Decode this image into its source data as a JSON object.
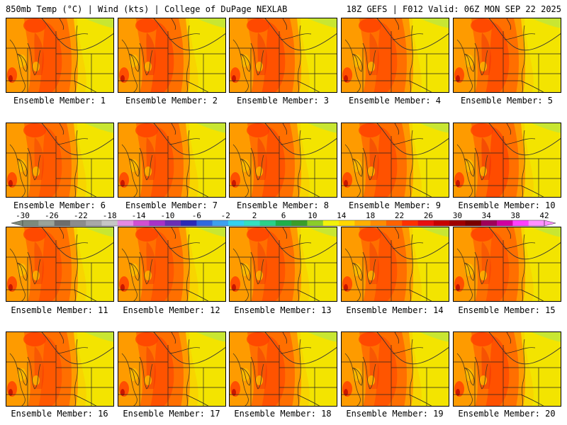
{
  "header": {
    "left": "850mb Temp (°C) | Wind (kts) | College of DuPage NEXLAB",
    "right": "18Z GEFS | F012 Valid: 06Z MON SEP 22 2025"
  },
  "member_label_prefix": "Ensemble Member: ",
  "members": [
    {
      "id": 1,
      "intensity": 0.55
    },
    {
      "id": 2,
      "intensity": 0.62
    },
    {
      "id": 3,
      "intensity": 0.58
    },
    {
      "id": 4,
      "intensity": 0.5
    },
    {
      "id": 5,
      "intensity": 0.6
    },
    {
      "id": 6,
      "intensity": 0.45
    },
    {
      "id": 7,
      "intensity": 0.52
    },
    {
      "id": 8,
      "intensity": 0.56
    },
    {
      "id": 9,
      "intensity": 0.57
    },
    {
      "id": 10,
      "intensity": 0.68
    },
    {
      "id": 11,
      "intensity": 0.47
    },
    {
      "id": 12,
      "intensity": 0.48
    },
    {
      "id": 13,
      "intensity": 0.5
    },
    {
      "id": 14,
      "intensity": 0.53
    },
    {
      "id": 15,
      "intensity": 0.44
    },
    {
      "id": 16,
      "intensity": 0.46
    },
    {
      "id": 17,
      "intensity": 0.54
    },
    {
      "id": 18,
      "intensity": 0.55
    },
    {
      "id": 19,
      "intensity": 0.49
    },
    {
      "id": 20,
      "intensity": 0.58
    }
  ],
  "colorbar": {
    "ticks": [
      "-30",
      "-26",
      "-22",
      "-18",
      "-14",
      "-10",
      "-6",
      "-2",
      "2",
      "6",
      "10",
      "14",
      "18",
      "22",
      "26",
      "30",
      "34",
      "38",
      "42"
    ],
    "colors": [
      "#7d8a7d",
      "#9aa39a",
      "#6e6e6e",
      "#8c8c8c",
      "#a8a8a8",
      "#c6c6c6",
      "#e58ae5",
      "#d24fd2",
      "#a832c8",
      "#6b2fb5",
      "#2a2ab8",
      "#2f6ae0",
      "#3da0f0",
      "#33d2f0",
      "#33e0c0",
      "#2ad28a",
      "#1fb04a",
      "#3a9e2a",
      "#8acd2a",
      "#f2f20a",
      "#ffd700",
      "#ffb000",
      "#ff8c00",
      "#ff6200",
      "#ff3000",
      "#e81010",
      "#c80000",
      "#a00000",
      "#7a0000",
      "#a0005a",
      "#d000a0",
      "#ff40ff",
      "#ff90ff"
    ]
  },
  "palette": {
    "green": "#c8e632",
    "yellow": "#f2e600",
    "gold": "#ffc000",
    "orange": "#ff9000",
    "darkorange": "#ff6a00",
    "red": "#ff3c00",
    "crimson": "#e61e0a",
    "darkred": "#b40000",
    "line": "#4a3a1a"
  }
}
